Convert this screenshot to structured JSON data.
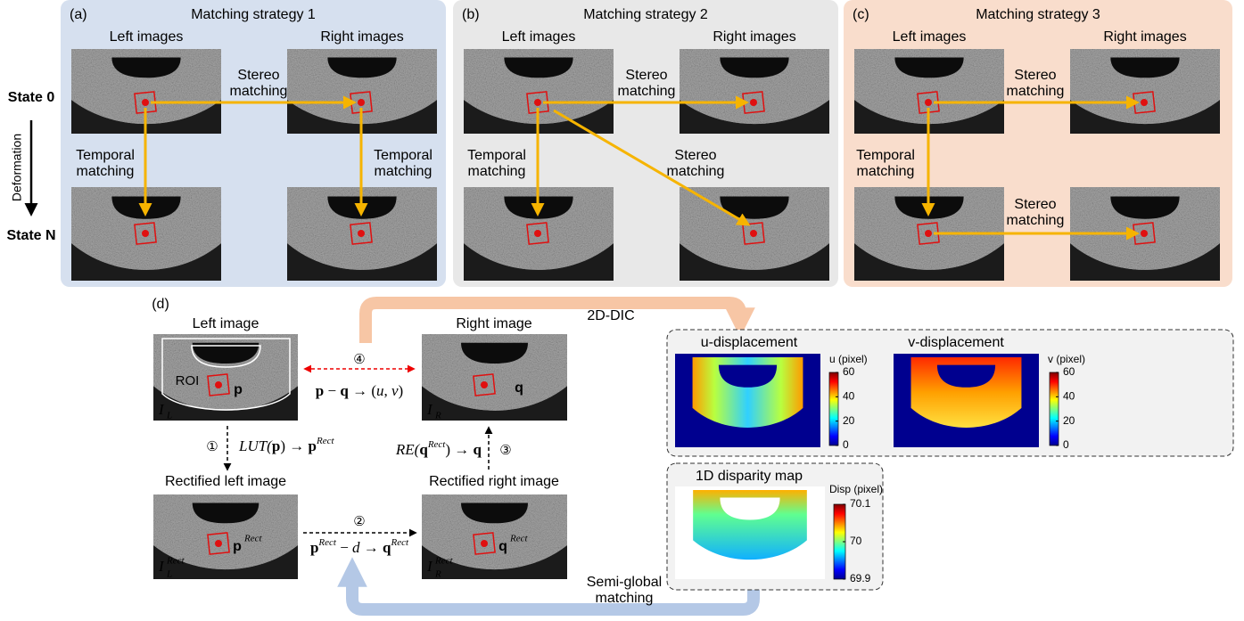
{
  "side": {
    "state_0": "State 0",
    "state_n": "State N",
    "deformation": "Deformation"
  },
  "panels": [
    {
      "label": "(a)",
      "title": "Matching strategy 1",
      "left": "Left images",
      "right": "Right images",
      "arrow_labels": [
        [
          "Stereo",
          "matching"
        ],
        [
          "Temporal",
          "matching"
        ],
        [
          "Temporal",
          "matching"
        ]
      ]
    },
    {
      "label": "(b)",
      "title": "Matching strategy 2",
      "left": "Left images",
      "right": "Right images",
      "arrow_labels": [
        [
          "Stereo",
          "matching"
        ],
        [
          "Temporal",
          "matching"
        ],
        [
          "Stereo",
          "matching"
        ]
      ]
    },
    {
      "label": "(c)",
      "title": "Matching strategy 3",
      "left": "Left images",
      "right": "Right images",
      "arrow_labels": [
        [
          "Stereo",
          "matching"
        ],
        [
          "Temporal",
          "matching"
        ],
        [
          "Stereo",
          "matching"
        ]
      ]
    }
  ],
  "panel_d": {
    "label": "(d)",
    "left_image": "Left image",
    "right_image": "Right image",
    "rect_left": "Rectified left image",
    "rect_right": "Rectified right image",
    "roi": "ROI",
    "p": "p",
    "q": "q",
    "p_rect": [
      "p",
      "Rect"
    ],
    "q_rect": [
      "q",
      "Rect"
    ],
    "i_l": [
      "I",
      "L"
    ],
    "i_r": [
      "I",
      "R"
    ],
    "i_l_rect": [
      "I",
      "Rect",
      "L"
    ],
    "i_r_rect": [
      "I",
      "Rect",
      "R"
    ],
    "steps": [
      {
        "num": "①",
        "formula": [
          "LUT(",
          "p",
          ") → ",
          "p",
          "Rect"
        ]
      },
      {
        "num": "②",
        "formula": [
          "p",
          "Rect",
          " − ",
          "d",
          " → ",
          "q",
          "Rect"
        ]
      },
      {
        "num": "③",
        "formula": [
          "RE(",
          "q",
          "Rect",
          ") → ",
          "q"
        ]
      },
      {
        "num": "④",
        "formula": [
          "p",
          " − ",
          "q",
          " → (",
          "u",
          ", ",
          "v",
          ")"
        ]
      }
    ],
    "dic": "2D-DIC",
    "sgm": [
      "Semi-global",
      "matching"
    ],
    "maps": [
      {
        "title": "u-displacement",
        "unit": "u (pixel)",
        "ticks": [
          0,
          20,
          40,
          60
        ]
      },
      {
        "title": "v-displacement",
        "unit": "v (pixel)",
        "ticks": [
          0,
          20,
          40,
          60
        ]
      },
      {
        "title": "1D disparity map",
        "unit": "Disp (pixel)",
        "ticks": [
          69.9,
          70,
          70.1
        ]
      }
    ]
  }
}
